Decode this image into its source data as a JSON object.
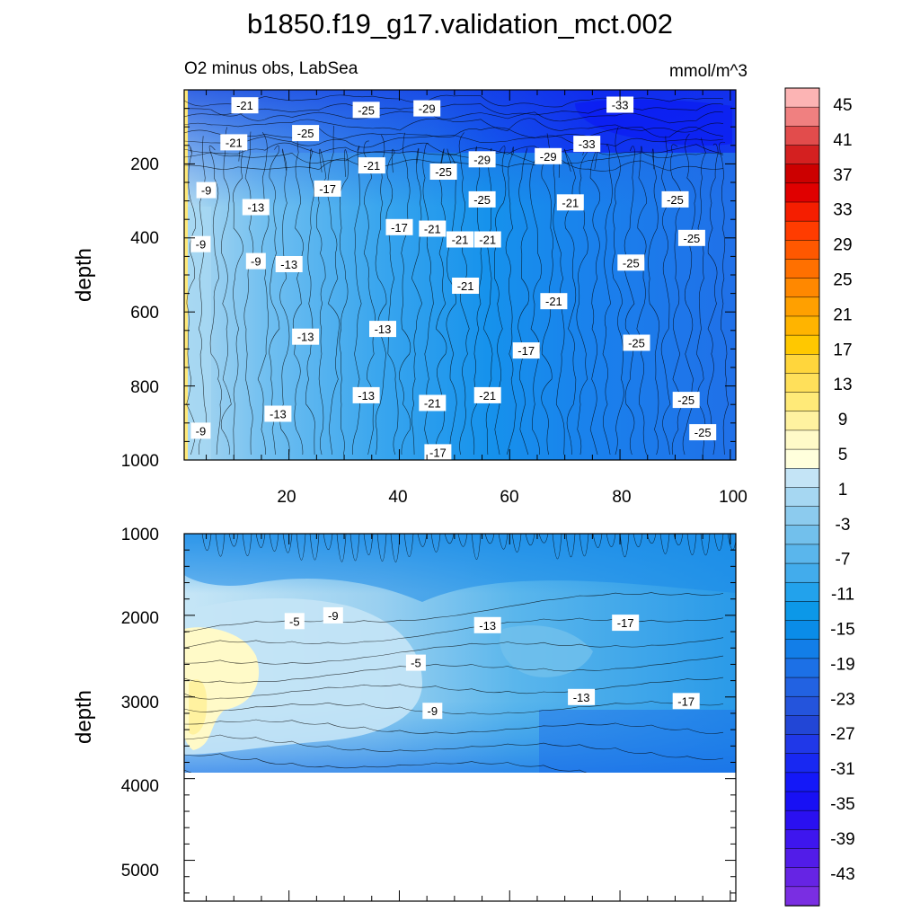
{
  "chart_data": [
    {
      "type": "heatmap",
      "panel": "upper",
      "title": "b1850.f19_g17.validation_mct.002",
      "subtitle_left": "O2 minus obs, LabSea",
      "subtitle_right": "mmol/m^3",
      "xlabel": "",
      "ylabel": "depth",
      "xlim": [
        1,
        101
      ],
      "ylim": [
        1000,
        0
      ],
      "x_ticks": [
        "20",
        "40",
        "60",
        "80",
        "100"
      ],
      "y_ticks": [
        "200",
        "400",
        "600",
        "800",
        "1000"
      ],
      "contour_labels": [
        {
          "text": "-21",
          "x": 12,
          "y": 50
        },
        {
          "text": "-25",
          "x": 34,
          "y": 65
        },
        {
          "text": "-29",
          "x": 45,
          "y": 60
        },
        {
          "text": "-33",
          "x": 80,
          "y": 48
        },
        {
          "text": "-21",
          "x": 10,
          "y": 170
        },
        {
          "text": "-25",
          "x": 23,
          "y": 140
        },
        {
          "text": "-21",
          "x": 35,
          "y": 245
        },
        {
          "text": "-25",
          "x": 48,
          "y": 265
        },
        {
          "text": "-29",
          "x": 55,
          "y": 225
        },
        {
          "text": "-29",
          "x": 67,
          "y": 215
        },
        {
          "text": "-33",
          "x": 74,
          "y": 175
        },
        {
          "text": "-9",
          "x": 5,
          "y": 325
        },
        {
          "text": "-13",
          "x": 14,
          "y": 380
        },
        {
          "text": "-17",
          "x": 27,
          "y": 320
        },
        {
          "text": "-25",
          "x": 55,
          "y": 355
        },
        {
          "text": "-21",
          "x": 71,
          "y": 365
        },
        {
          "text": "-25",
          "x": 90,
          "y": 355
        },
        {
          "text": "-9",
          "x": 4,
          "y": 500
        },
        {
          "text": "-9",
          "x": 14,
          "y": 555
        },
        {
          "text": "-13",
          "x": 20,
          "y": 565
        },
        {
          "text": "-17",
          "x": 40,
          "y": 445
        },
        {
          "text": "-21",
          "x": 46,
          "y": 450
        },
        {
          "text": "-21",
          "x": 51,
          "y": 485
        },
        {
          "text": "-21",
          "x": 56,
          "y": 485
        },
        {
          "text": "-25",
          "x": 82,
          "y": 560
        },
        {
          "text": "-25",
          "x": 93,
          "y": 480
        },
        {
          "text": "-21",
          "x": 52,
          "y": 635
        },
        {
          "text": "-21",
          "x": 68,
          "y": 685
        },
        {
          "text": "-13",
          "x": 23,
          "y": 800
        },
        {
          "text": "-13",
          "x": 37,
          "y": 775
        },
        {
          "text": "-25",
          "x": 83,
          "y": 820
        },
        {
          "text": "-17",
          "x": 63,
          "y": 845
        },
        {
          "text": "-13",
          "x": 34,
          "y": 990
        },
        {
          "text": "-21",
          "x": 56,
          "y": 990
        },
        {
          "text": "-25",
          "x": 92,
          "y": 1005
        },
        {
          "text": "-21",
          "x": 46,
          "y": 1015
        },
        {
          "text": "-13",
          "x": 18,
          "y": 1050
        },
        {
          "text": "-9",
          "x": 4,
          "y": 1105
        },
        {
          "text": "-25",
          "x": 95,
          "y": 1110
        },
        {
          "text": "-17",
          "x": 47,
          "y": 1175
        }
      ]
    },
    {
      "type": "heatmap",
      "panel": "lower",
      "xlabel": "",
      "ylabel": "depth",
      "xlim": [
        1,
        101
      ],
      "ylim": [
        5500,
        1000
      ],
      "y_ticks": [
        "1000",
        "2000",
        "3000",
        "4000",
        "5000"
      ],
      "data_bottom_depth": 3880,
      "contour_labels": [
        {
          "text": "-5",
          "x": 21,
          "y": 2070
        },
        {
          "text": "-9",
          "x": 28,
          "y": 2000
        },
        {
          "text": "-13",
          "x": 56,
          "y": 2120
        },
        {
          "text": "-17",
          "x": 81,
          "y": 2090
        },
        {
          "text": "-5",
          "x": 43,
          "y": 2580
        },
        {
          "text": "-9",
          "x": 46,
          "y": 3170
        },
        {
          "text": "-13",
          "x": 73,
          "y": 3000
        },
        {
          "text": "-17",
          "x": 92,
          "y": 3050
        }
      ]
    }
  ],
  "colorbar": {
    "labels": [
      "45",
      "41",
      "37",
      "33",
      "29",
      "25",
      "21",
      "17",
      "13",
      "9",
      "5",
      "1",
      "-3",
      "-7",
      "-11",
      "-15",
      "-19",
      "-23",
      "-27",
      "-31",
      "-35",
      "-39",
      "-43"
    ],
    "colors": [
      "#fcb4b4",
      "#f08080",
      "#e24c4c",
      "#d42020",
      "#cc0000",
      "#e00000",
      "#f51e00",
      "#ff3c00",
      "#ff5800",
      "#ff7000",
      "#ff8800",
      "#ffa000",
      "#ffb400",
      "#ffc800",
      "#ffd63c",
      "#ffe05a",
      "#ffea78",
      "#fff2a0",
      "#fffac8",
      "#ffffdc",
      "#c4e4f6",
      "#a6d7f2",
      "#8ccbee",
      "#72c0ec",
      "#5ab6ec",
      "#42acec",
      "#22a2ec",
      "#0c98e8",
      "#0a8ce8",
      "#127ee8",
      "#1c70e6",
      "#2262e2",
      "#2454dc",
      "#2246d6",
      "#2038e8",
      "#1828f2",
      "#1418f8",
      "#1810f4",
      "#2a10f0",
      "#3e16ee",
      "#521ce8",
      "#6624e4",
      "#7a2ee2"
    ]
  }
}
